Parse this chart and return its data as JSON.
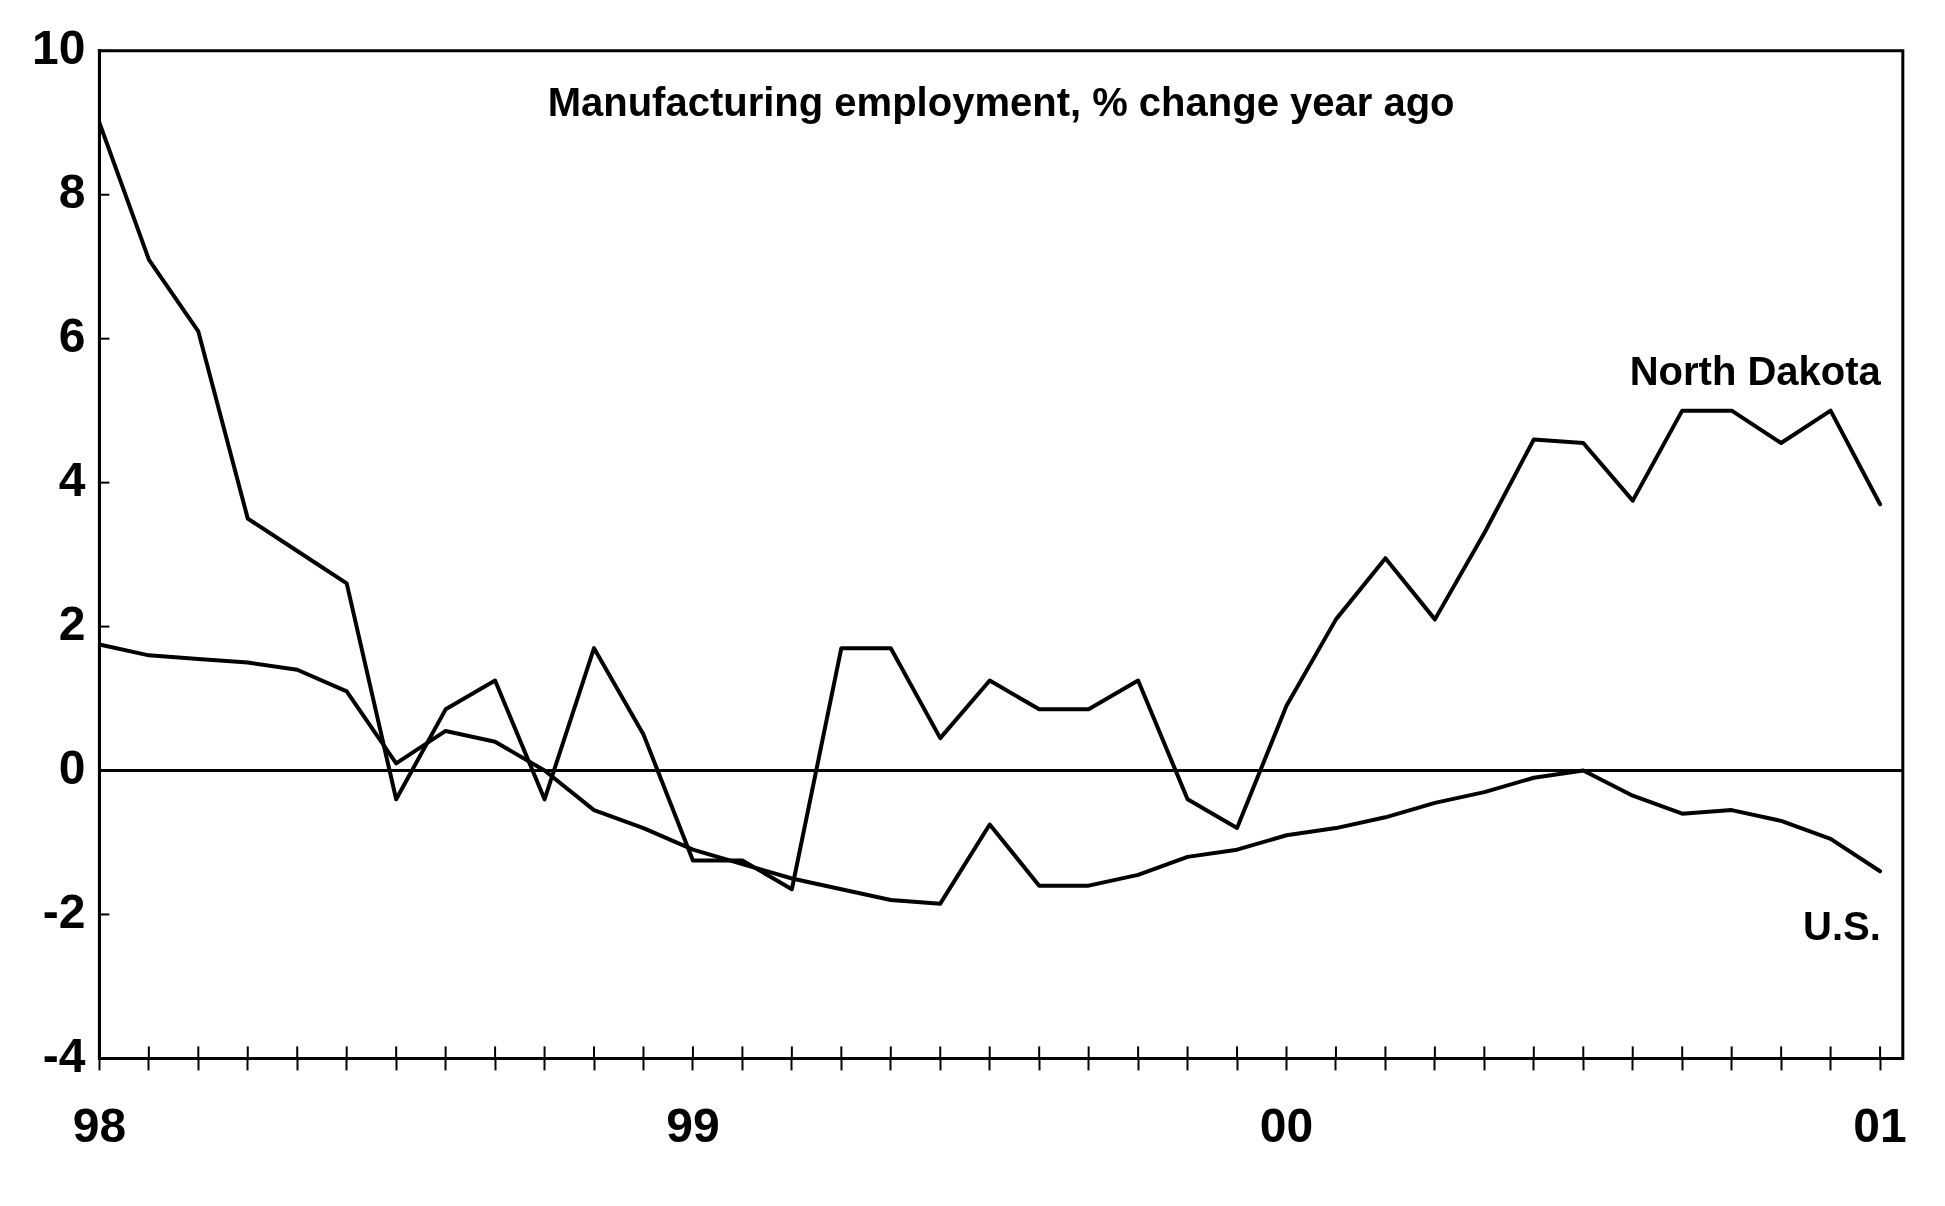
{
  "chart_data": {
    "type": "line",
    "title": "Manufacturing employment, % change year ago",
    "x": [
      "1998-01",
      "1998-02",
      "1998-03",
      "1998-04",
      "1998-05",
      "1998-06",
      "1998-07",
      "1998-08",
      "1998-09",
      "1998-10",
      "1998-11",
      "1998-12",
      "1999-01",
      "1999-02",
      "1999-03",
      "1999-04",
      "1999-05",
      "1999-06",
      "1999-07",
      "1999-08",
      "1999-09",
      "1999-10",
      "1999-11",
      "1999-12",
      "2000-01",
      "2000-02",
      "2000-03",
      "2000-04",
      "2000-05",
      "2000-06",
      "2000-07",
      "2000-08",
      "2000-09",
      "2000-10",
      "2000-11",
      "2000-12",
      "2001-01"
    ],
    "series": [
      {
        "name": "North Dakota",
        "color": "#000000",
        "values": [
          9.0,
          7.1,
          6.1,
          3.5,
          3.05,
          2.6,
          -0.4,
          0.85,
          1.25,
          -0.4,
          1.7,
          0.5,
          -1.25,
          -1.25,
          -1.65,
          1.7,
          1.7,
          0.45,
          1.25,
          0.85,
          0.85,
          1.25,
          -0.4,
          -0.8,
          0.9,
          2.1,
          2.95,
          2.1,
          3.3,
          4.6,
          4.55,
          3.75,
          5.0,
          5.0,
          4.55,
          5.0,
          3.7
        ]
      },
      {
        "name": "U.S.",
        "color": "#000000",
        "values": [
          1.75,
          1.6,
          1.55,
          1.5,
          1.4,
          1.1,
          0.1,
          0.55,
          0.4,
          0.0,
          -0.55,
          -0.8,
          -1.1,
          -1.3,
          -1.5,
          -1.65,
          -1.8,
          -1.85,
          -0.75,
          -1.6,
          -1.6,
          -1.45,
          -1.2,
          -1.1,
          -0.9,
          -0.8,
          -0.65,
          -0.45,
          -0.3,
          -0.1,
          0.0,
          -0.35,
          -0.6,
          -0.55,
          -0.7,
          -0.95,
          -1.4
        ]
      }
    ],
    "xlim": [
      "1998-01",
      "2001-01-15"
    ],
    "xticks": [
      {
        "value": "1998-01",
        "label": "98"
      },
      {
        "value": "1998-02",
        "label": null
      },
      {
        "value": "1998-03",
        "label": null
      },
      {
        "value": "1998-04",
        "label": null
      },
      {
        "value": "1998-05",
        "label": null
      },
      {
        "value": "1998-06",
        "label": null
      },
      {
        "value": "1998-07",
        "label": null
      },
      {
        "value": "1998-08",
        "label": null
      },
      {
        "value": "1998-09",
        "label": null
      },
      {
        "value": "1998-10",
        "label": null
      },
      {
        "value": "1998-11",
        "label": null
      },
      {
        "value": "1998-12",
        "label": null
      },
      {
        "value": "1999-01",
        "label": "99"
      },
      {
        "value": "1999-02",
        "label": null
      },
      {
        "value": "1999-03",
        "label": null
      },
      {
        "value": "1999-04",
        "label": null
      },
      {
        "value": "1999-05",
        "label": null
      },
      {
        "value": "1999-06",
        "label": null
      },
      {
        "value": "1999-07",
        "label": null
      },
      {
        "value": "1999-08",
        "label": null
      },
      {
        "value": "1999-09",
        "label": null
      },
      {
        "value": "1999-10",
        "label": null
      },
      {
        "value": "1999-11",
        "label": null
      },
      {
        "value": "1999-12",
        "label": null
      },
      {
        "value": "2000-01",
        "label": "00"
      },
      {
        "value": "2000-02",
        "label": null
      },
      {
        "value": "2000-03",
        "label": null
      },
      {
        "value": "2000-04",
        "label": null
      },
      {
        "value": "2000-05",
        "label": null
      },
      {
        "value": "2000-06",
        "label": null
      },
      {
        "value": "2000-07",
        "label": null
      },
      {
        "value": "2000-08",
        "label": null
      },
      {
        "value": "2000-09",
        "label": null
      },
      {
        "value": "2000-10",
        "label": null
      },
      {
        "value": "2000-11",
        "label": null
      },
      {
        "value": "2000-12",
        "label": null
      },
      {
        "value": "2001-01",
        "label": "01"
      }
    ],
    "ylim": [
      -4,
      10
    ],
    "yticks": [
      -4,
      -2,
      0,
      2,
      4,
      6,
      8,
      10
    ],
    "ref_lines": [
      {
        "axis": "y",
        "value": 0,
        "color": "#000000"
      }
    ],
    "grid": false,
    "legend": false,
    "marker": "none",
    "line_style": "solid"
  }
}
